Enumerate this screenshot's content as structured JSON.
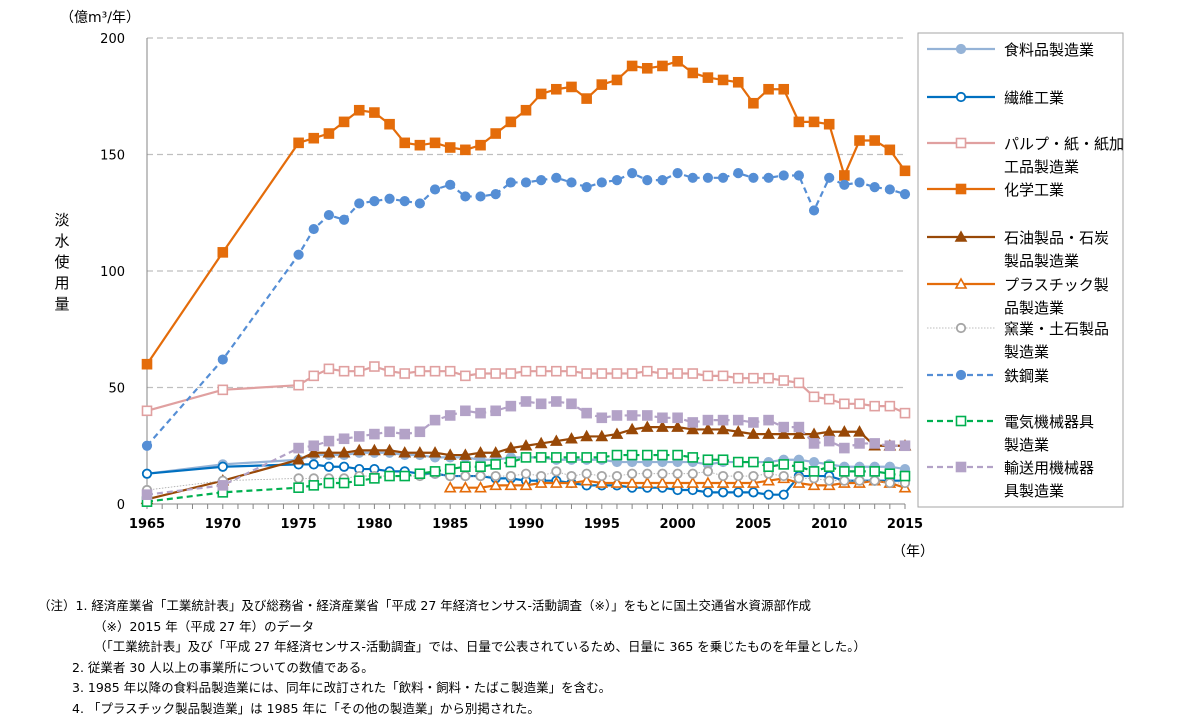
{
  "chart_data": {
    "type": "line",
    "unit_label": "（億m³/年）",
    "ylabel": "淡水使用量",
    "xlabel": "（年）",
    "ylim": [
      0,
      200
    ],
    "yticks": [
      0,
      50,
      100,
      150,
      200
    ],
    "xlim": [
      1965,
      2015
    ],
    "xticks": [
      1965,
      1970,
      1975,
      1980,
      1985,
      1990,
      1995,
      2000,
      2005,
      2010,
      2015
    ],
    "grid": "horizontal dashed",
    "legend_position": "right",
    "x": [
      1965,
      1970,
      1975,
      1976,
      1977,
      1978,
      1979,
      1980,
      1981,
      1982,
      1983,
      1984,
      1985,
      1986,
      1987,
      1988,
      1989,
      1990,
      1991,
      1992,
      1993,
      1994,
      1995,
      1996,
      1997,
      1998,
      1999,
      2000,
      2001,
      2002,
      2003,
      2004,
      2005,
      2006,
      2007,
      2008,
      2009,
      2010,
      2011,
      2012,
      2013,
      2014,
      2015
    ],
    "series": [
      {
        "name": "食料品製造業",
        "color": "#95b3d7",
        "marker": "circle-filled",
        "line": "solid",
        "values": [
          13,
          17,
          19,
          21,
          21,
          21,
          22,
          22,
          22,
          21,
          21,
          20,
          20,
          20,
          19,
          19,
          20,
          20,
          20,
          19,
          19,
          19,
          19,
          18,
          18,
          18,
          18,
          18,
          18,
          17,
          18,
          18,
          18,
          18,
          19,
          19,
          18,
          17,
          16,
          16,
          16,
          16,
          15
        ]
      },
      {
        "name": "繊維工業",
        "color": "#0070c0",
        "marker": "circle-open",
        "line": "solid",
        "values": [
          13,
          16,
          17,
          17,
          16,
          16,
          15,
          15,
          14,
          14,
          13,
          13,
          12,
          12,
          12,
          11,
          11,
          10,
          10,
          10,
          9,
          8,
          8,
          8,
          7,
          7,
          7,
          6,
          6,
          5,
          5,
          5,
          5,
          4,
          4,
          12,
          12,
          12,
          10,
          10,
          10,
          10,
          10
        ]
      },
      {
        "name": "パルプ・紙・紙加工品製造業",
        "color": "#e0a0a0",
        "marker": "square-open",
        "line": "solid",
        "values": [
          40,
          49,
          51,
          55,
          58,
          57,
          57,
          59,
          57,
          56,
          57,
          57,
          57,
          55,
          56,
          56,
          56,
          57,
          57,
          57,
          57,
          56,
          56,
          56,
          56,
          57,
          56,
          56,
          56,
          55,
          55,
          54,
          54,
          54,
          53,
          52,
          46,
          45,
          43,
          43,
          42,
          42,
          39
        ]
      },
      {
        "name": "化学工業",
        "color": "#e46c0a",
        "marker": "square-filled",
        "line": "solid",
        "values": [
          60,
          108,
          155,
          157,
          159,
          164,
          169,
          168,
          163,
          155,
          154,
          155,
          153,
          152,
          154,
          159,
          164,
          169,
          176,
          178,
          179,
          174,
          180,
          182,
          188,
          187,
          188,
          190,
          185,
          183,
          182,
          181,
          172,
          178,
          178,
          164,
          164,
          163,
          141,
          156,
          156,
          152,
          143
        ]
      },
      {
        "name": "石油製品・石炭製品製造業",
        "color": "#984807",
        "marker": "triangle-filled",
        "line": "solid",
        "values": [
          2,
          10,
          19,
          22,
          22,
          22,
          23,
          23,
          23,
          22,
          22,
          22,
          21,
          21,
          22,
          22,
          24,
          25,
          26,
          27,
          28,
          29,
          29,
          30,
          32,
          33,
          33,
          33,
          32,
          32,
          32,
          31,
          30,
          30,
          30,
          30,
          30,
          31,
          31,
          31,
          25,
          25,
          25
        ]
      },
      {
        "name": "プラスチック製品製造業",
        "color": "#e46c0a",
        "marker": "triangle-open",
        "line": "solid",
        "values": [
          null,
          null,
          null,
          null,
          null,
          null,
          null,
          null,
          null,
          null,
          null,
          null,
          7,
          7,
          7,
          8,
          8,
          8,
          9,
          9,
          9,
          10,
          9,
          9,
          9,
          9,
          9,
          9,
          9,
          9,
          9,
          9,
          9,
          10,
          11,
          9,
          8,
          8,
          9,
          9,
          10,
          9,
          7
        ]
      },
      {
        "name": "窯業・土石製品製造業",
        "color": "#a6a6a6",
        "marker": "circle-open",
        "line": "dotted",
        "values": [
          6,
          10,
          11,
          11,
          11,
          11,
          12,
          12,
          12,
          12,
          12,
          13,
          12,
          12,
          12,
          12,
          12,
          13,
          12,
          14,
          12,
          13,
          12,
          12,
          13,
          13,
          13,
          13,
          13,
          14,
          12,
          12,
          12,
          13,
          12,
          11,
          11,
          10,
          10,
          10,
          10,
          9,
          9
        ]
      },
      {
        "name": "鉄鋼業",
        "color": "#558ed5",
        "marker": "circle-filled",
        "line": "dashed",
        "values": [
          25,
          62,
          107,
          118,
          124,
          122,
          129,
          130,
          131,
          130,
          129,
          135,
          137,
          132,
          132,
          133,
          138,
          138,
          139,
          140,
          138,
          136,
          138,
          139,
          142,
          139,
          139,
          142,
          140,
          140,
          140,
          142,
          140,
          140,
          141,
          141,
          126,
          140,
          137,
          138,
          136,
          135,
          133
        ]
      },
      {
        "name": "電気機械器具製造業",
        "color": "#00b050",
        "marker": "square-open",
        "line": "dashed",
        "values": [
          1,
          5,
          7,
          8,
          9,
          9,
          10,
          11,
          12,
          12,
          13,
          14,
          15,
          16,
          16,
          17,
          18,
          20,
          20,
          20,
          20,
          20,
          20,
          21,
          21,
          21,
          21,
          21,
          20,
          19,
          19,
          18,
          18,
          16,
          17,
          16,
          14,
          16,
          14,
          14,
          14,
          13,
          12
        ]
      },
      {
        "name": "輸送用機械器具製造業",
        "color": "#b3a2c7",
        "marker": "square-filled",
        "line": "dashed",
        "values": [
          4,
          8,
          24,
          25,
          27,
          28,
          29,
          30,
          31,
          30,
          31,
          36,
          38,
          40,
          39,
          40,
          42,
          44,
          43,
          44,
          43,
          39,
          37,
          38,
          38,
          38,
          37,
          37,
          35,
          36,
          36,
          36,
          35,
          36,
          33,
          33,
          26,
          27,
          24,
          26,
          26,
          25,
          25
        ]
      }
    ]
  },
  "legend_lines": [
    [
      "食料品製造業"
    ],
    [
      "繊維工業"
    ],
    [
      "パルプ・紙・紙加",
      "工品製造業"
    ],
    [
      "化学工業"
    ],
    [
      "石油製品・石炭",
      "製品製造業"
    ],
    [
      "プラスチック製",
      "品製造業"
    ],
    [
      "窯業・土石製品",
      "製造業"
    ],
    [
      "鉄鋼業"
    ],
    [
      "電気機械器具",
      "製造業"
    ],
    [
      "輸送用機械器",
      "具製造業"
    ]
  ],
  "notes": [
    "（注）1. 経済産業省「工業統計表」及び総務省・経済産業省「平成 27 年経済センサス-活動調査（※）」をもとに国土交通省水資源部作成",
    "（※）2015 年（平成 27 年）のデータ",
    "（「工業統計表」及び「平成 27 年経済センサス-活動調査」では、日量で公表されているため、日量に 365 を乗じたものを年量とした。）",
    "2. 従業者 30 人以上の事業所についての数値である。",
    "3. 1985 年以降の食料品製造業には、同年に改訂された「飲料・飼料・たばこ製造業」を含む。",
    "4. 「プラスチック製品製造業」は 1985 年に「その他の製造業」から別掲された。"
  ]
}
